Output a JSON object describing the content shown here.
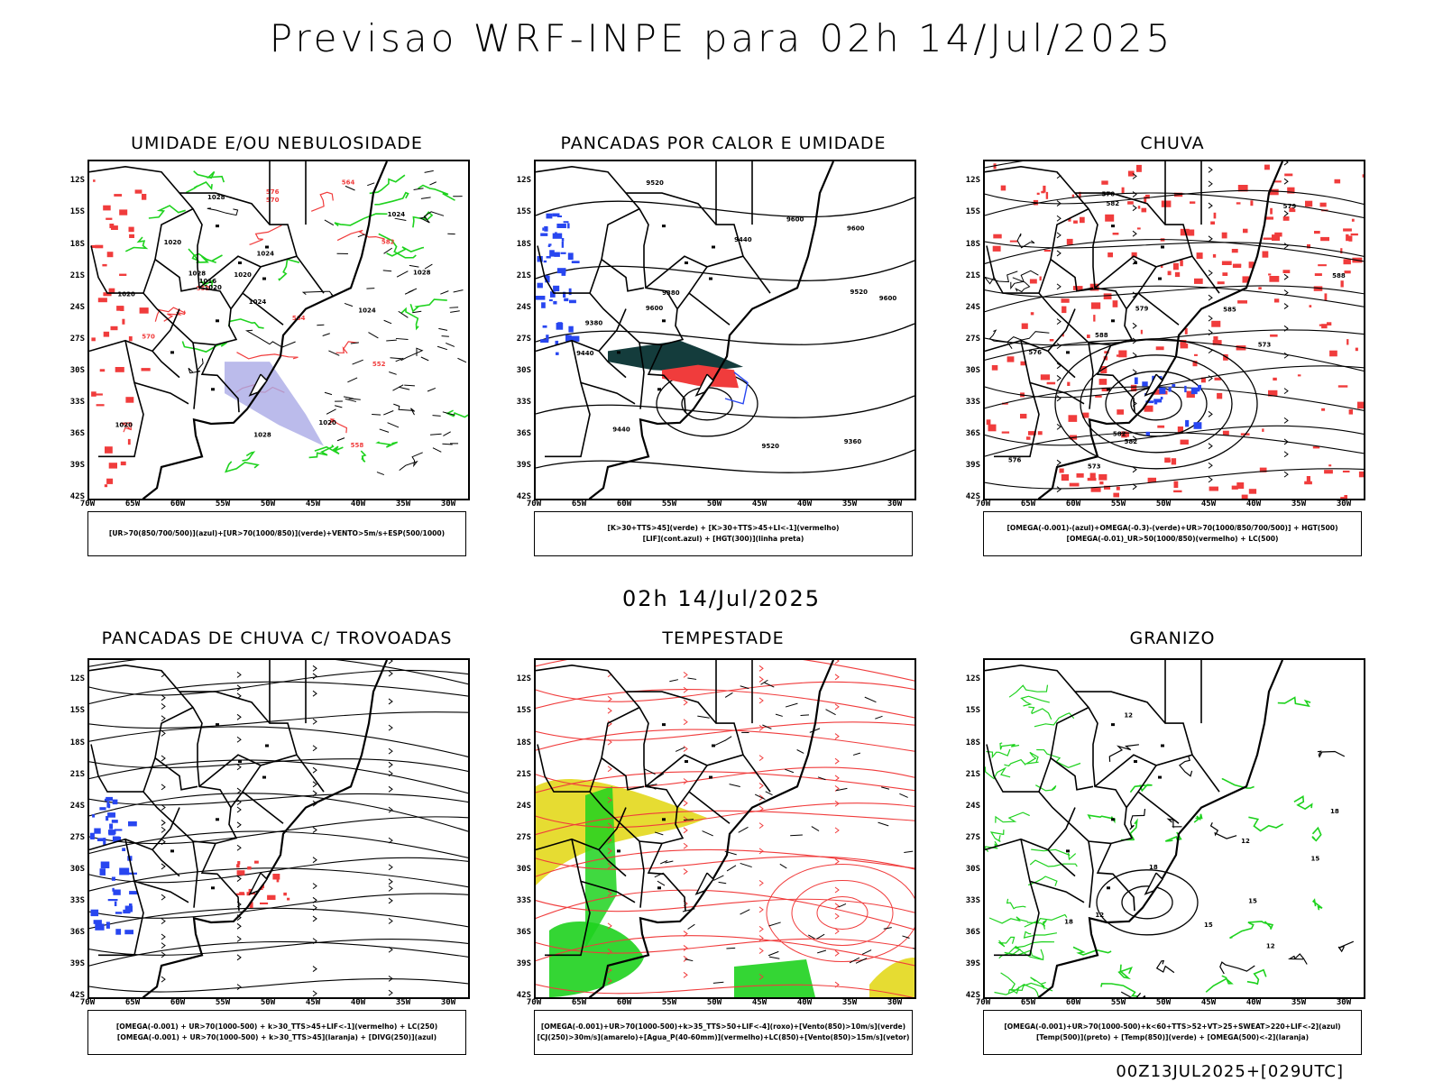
{
  "title": "Previsao WRF-INPE  para 02h 14/Jul/2025",
  "mid_date": "02h 14/Jul/2025",
  "footer": "00Z13JUL2025+[029UTC]",
  "lat_labels": [
    "12S",
    "15S",
    "18S",
    "21S",
    "24S",
    "27S",
    "30S",
    "33S",
    "36S",
    "39S",
    "42S"
  ],
  "lon_labels": [
    "70W",
    "65W",
    "60W",
    "55W",
    "50W",
    "45W",
    "40W",
    "35W",
    "30W"
  ],
  "colors": {
    "red": "#f03c3c",
    "green": "#1ed21e",
    "blue": "#2846f0",
    "yellow": "#e6dc32",
    "lavender": "#aaaae6",
    "darkteal": "#143c3c",
    "black": "#000000"
  },
  "panels": [
    {
      "title": "UMIDADE E/OU NEBULOSIDADE",
      "legend": [
        "[UR>70(850/700/500)](azul)+[UR>70(1000/850)](verde)+VENTO>5m/s+ESP(500/1000)"
      ],
      "labels": [
        "1016",
        "1020",
        "1020",
        "1024",
        "1020",
        "1020",
        "1028",
        "1024",
        "1020",
        "1028",
        "1020",
        "1024",
        "1024",
        "1028",
        "1028",
        "570",
        "564",
        "558",
        "552",
        "582",
        "576",
        "564",
        "570",
        "552"
      ]
    },
    {
      "title": "PANCADAS POR CALOR E UMIDADE",
      "legend": [
        "[K>30+TTS>45](verde) + [K>30+TTS>45+LI<-1](vermelho)",
        "[LIF](cont.azul) + [HGT(300)](linha preta)"
      ],
      "labels": [
        "9600",
        "9600",
        "9600",
        "9600",
        "9520",
        "9520",
        "9520",
        "9440",
        "9440",
        "9440",
        "9380",
        "9380",
        "9360"
      ]
    },
    {
      "title": "CHUVA",
      "legend": [
        "[OMEGA(-0.001)-(azul)+OMEGA(-0.3)-(verde)+UR>70(1000/850/700/500)] + HGT(500)",
        "[OMEGA(-0.01)_UR>50(1000/850)(vermelho) + LC(500)"
      ],
      "labels": [
        "588",
        "585",
        "582",
        "582",
        "579",
        "576",
        "573",
        "570",
        "582",
        "579",
        "576",
        "573",
        "588"
      ]
    },
    {
      "title": "PANCADAS DE CHUVA C/ TROVOADAS",
      "legend": [
        "[OMEGA(-0.001) + UR>70(1000-500) + k>30_TTS>45+LIF<-1](vermelho) + LC(250)",
        "[OMEGA(-0.001) + UR>70(1000-500) + k>30_TTS>45](laranja) + [DIVG(250)](azul)"
      ],
      "labels": []
    },
    {
      "title": "TEMPESTADE",
      "legend": [
        "[OMEGA(-0.001)+UR>70(1000-500)+k>35_TTS>50+LIF<-4](roxo)+[Vento(850)>10m/s](verde)",
        "[CJ(250)>30m/s](amarelo)+[Agua_P(40-60mm)](vermelho)+LC(850)+[Vento(850)>15m/s](vetor)"
      ],
      "labels": []
    },
    {
      "title": "GRANIZO",
      "legend": [
        "[OMEGA(-0.001)+UR>70(1000-500)+k<60+TTS>52+VT>25+SWEAT>220+LIF<-2](azul)",
        "[Temp(500)](preto) + [Temp(850)](verde) + [OMEGA(500)<-2](laranja)"
      ],
      "labels": [
        "12",
        "12",
        "12",
        "15",
        "15",
        "18",
        "18",
        "18",
        "12",
        "15"
      ]
    }
  ]
}
